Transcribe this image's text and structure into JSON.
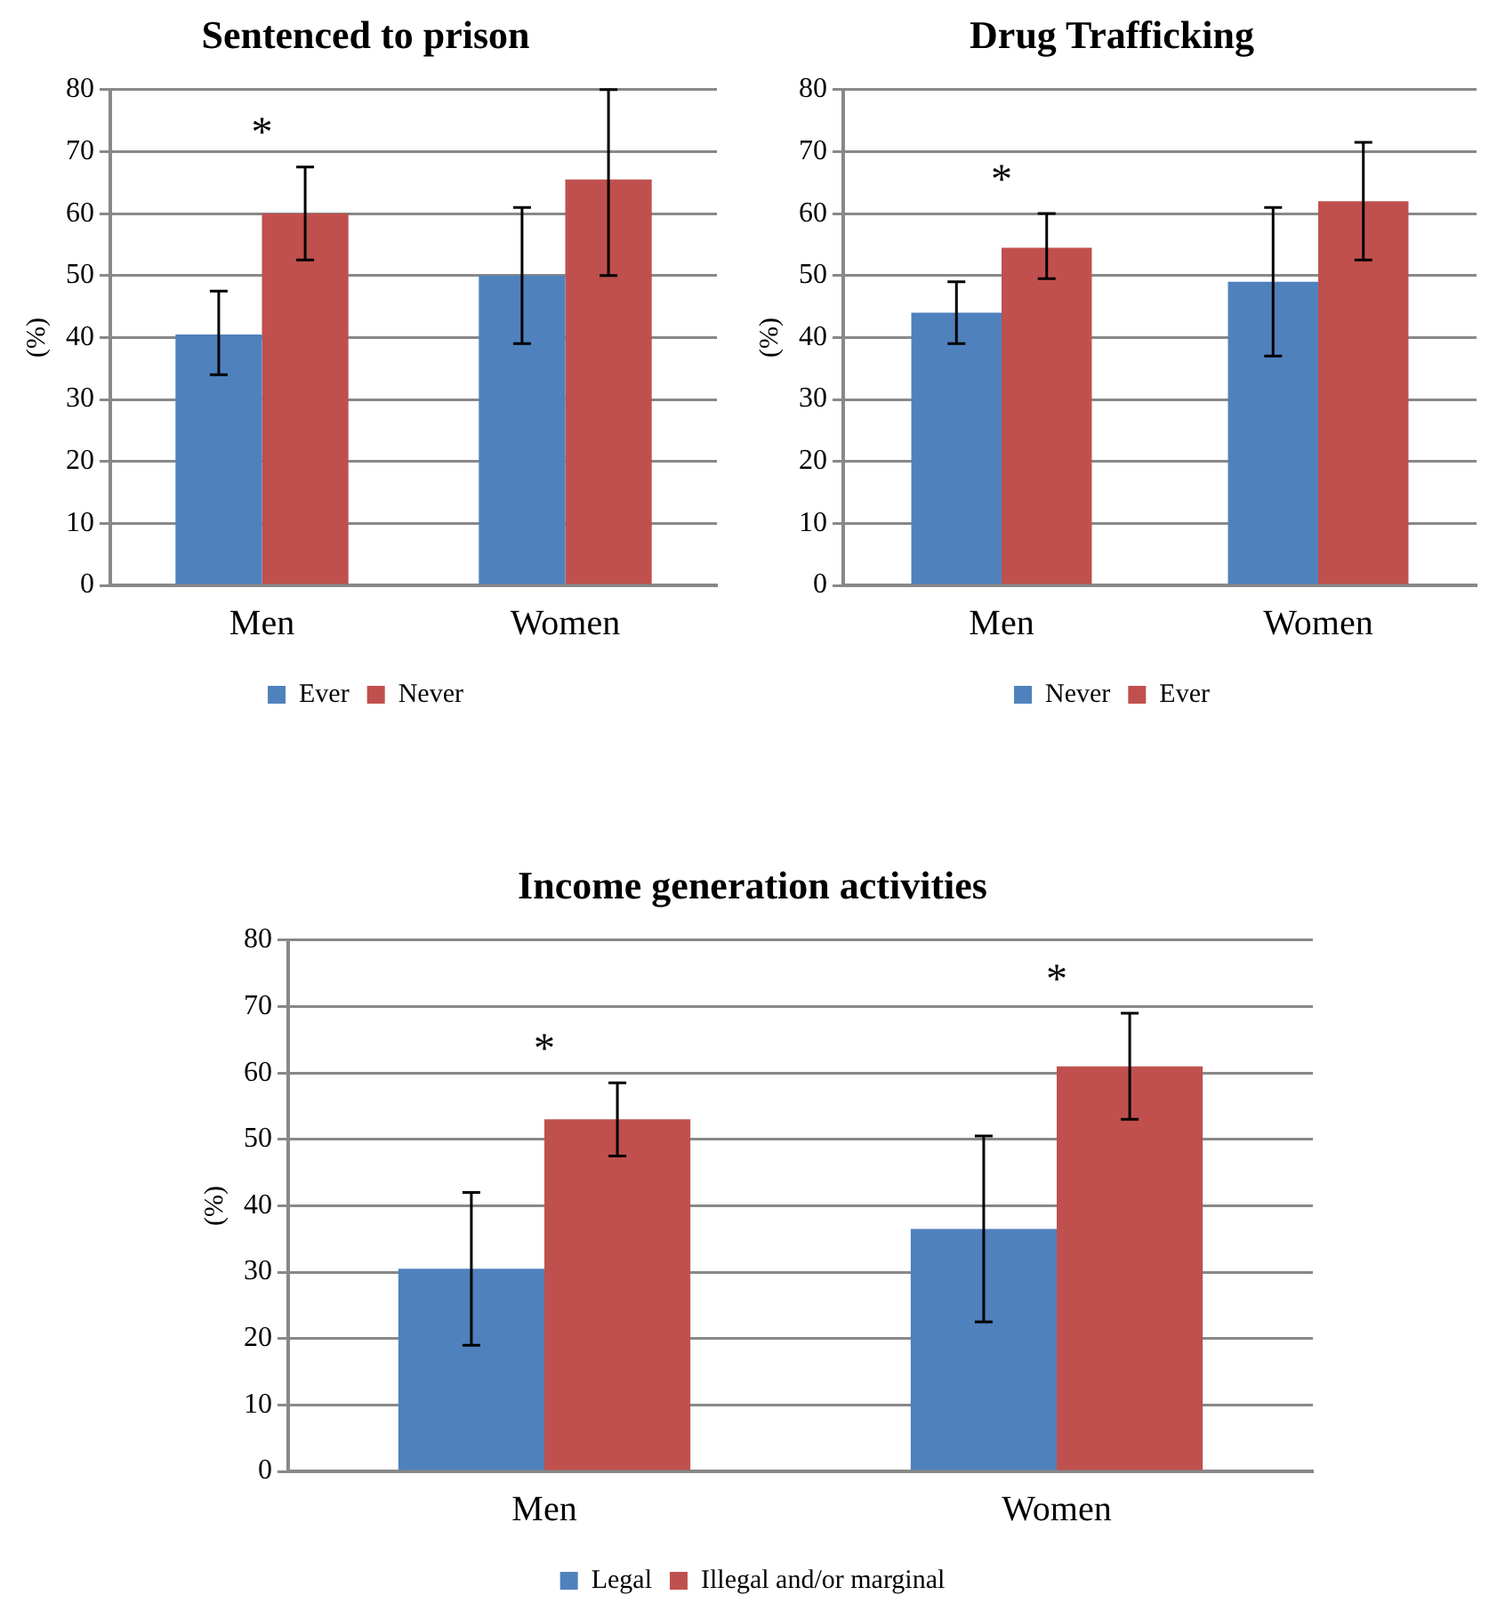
{
  "chart_data": [
    {
      "type": "bar",
      "title": "Sentenced to prison",
      "ylabel": "(%)",
      "categories": [
        "Men",
        "Women"
      ],
      "ylim": [
        0,
        80
      ],
      "yticks": [
        0,
        10,
        20,
        30,
        40,
        50,
        60,
        70,
        80
      ],
      "grid": "y",
      "legend": "bottom",
      "annotations": [
        "*"
      ],
      "series": [
        {
          "name": "Ever",
          "color": "#4f81bd",
          "values": [
            40.5,
            50
          ],
          "errors": [
            [
              34,
              47.5
            ],
            [
              39,
              61
            ]
          ]
        },
        {
          "name": "Never",
          "color": "#c0504d",
          "values": [
            60,
            65.5
          ],
          "errors": [
            [
              52.5,
              67.5
            ],
            [
              50,
              80
            ]
          ]
        }
      ]
    },
    {
      "type": "bar",
      "title": "Drug Trafficking",
      "ylabel": "(%)",
      "categories": [
        "Men",
        "Women"
      ],
      "ylim": [
        0,
        80
      ],
      "yticks": [
        0,
        10,
        20,
        30,
        40,
        50,
        60,
        70,
        80
      ],
      "grid": "y",
      "legend": "bottom",
      "annotations": [
        "*"
      ],
      "series": [
        {
          "name": "Never",
          "color": "#4f81bd",
          "values": [
            44,
            49
          ],
          "errors": [
            [
              39,
              49
            ],
            [
              37,
              61
            ]
          ]
        },
        {
          "name": "Ever",
          "color": "#c0504d",
          "values": [
            54.5,
            62
          ],
          "errors": [
            [
              49.5,
              60
            ],
            [
              52.5,
              71.5
            ]
          ]
        }
      ]
    },
    {
      "type": "bar",
      "title": "Income generation activities",
      "ylabel": "(%)",
      "categories": [
        "Men",
        "Women"
      ],
      "ylim": [
        0,
        80
      ],
      "yticks": [
        0,
        10,
        20,
        30,
        40,
        50,
        60,
        70,
        80
      ],
      "grid": "y",
      "legend": "bottom",
      "annotations": [
        "*",
        "*"
      ],
      "series": [
        {
          "name": "Legal",
          "color": "#4f81bd",
          "values": [
            30.5,
            36.5
          ],
          "errors": [
            [
              19,
              42
            ],
            [
              22.5,
              50.5
            ]
          ]
        },
        {
          "name": "Illegal and/or marginal",
          "color": "#c0504d",
          "values": [
            53,
            61
          ],
          "errors": [
            [
              47.5,
              58.5
            ],
            [
              53,
              69
            ]
          ]
        }
      ]
    }
  ]
}
